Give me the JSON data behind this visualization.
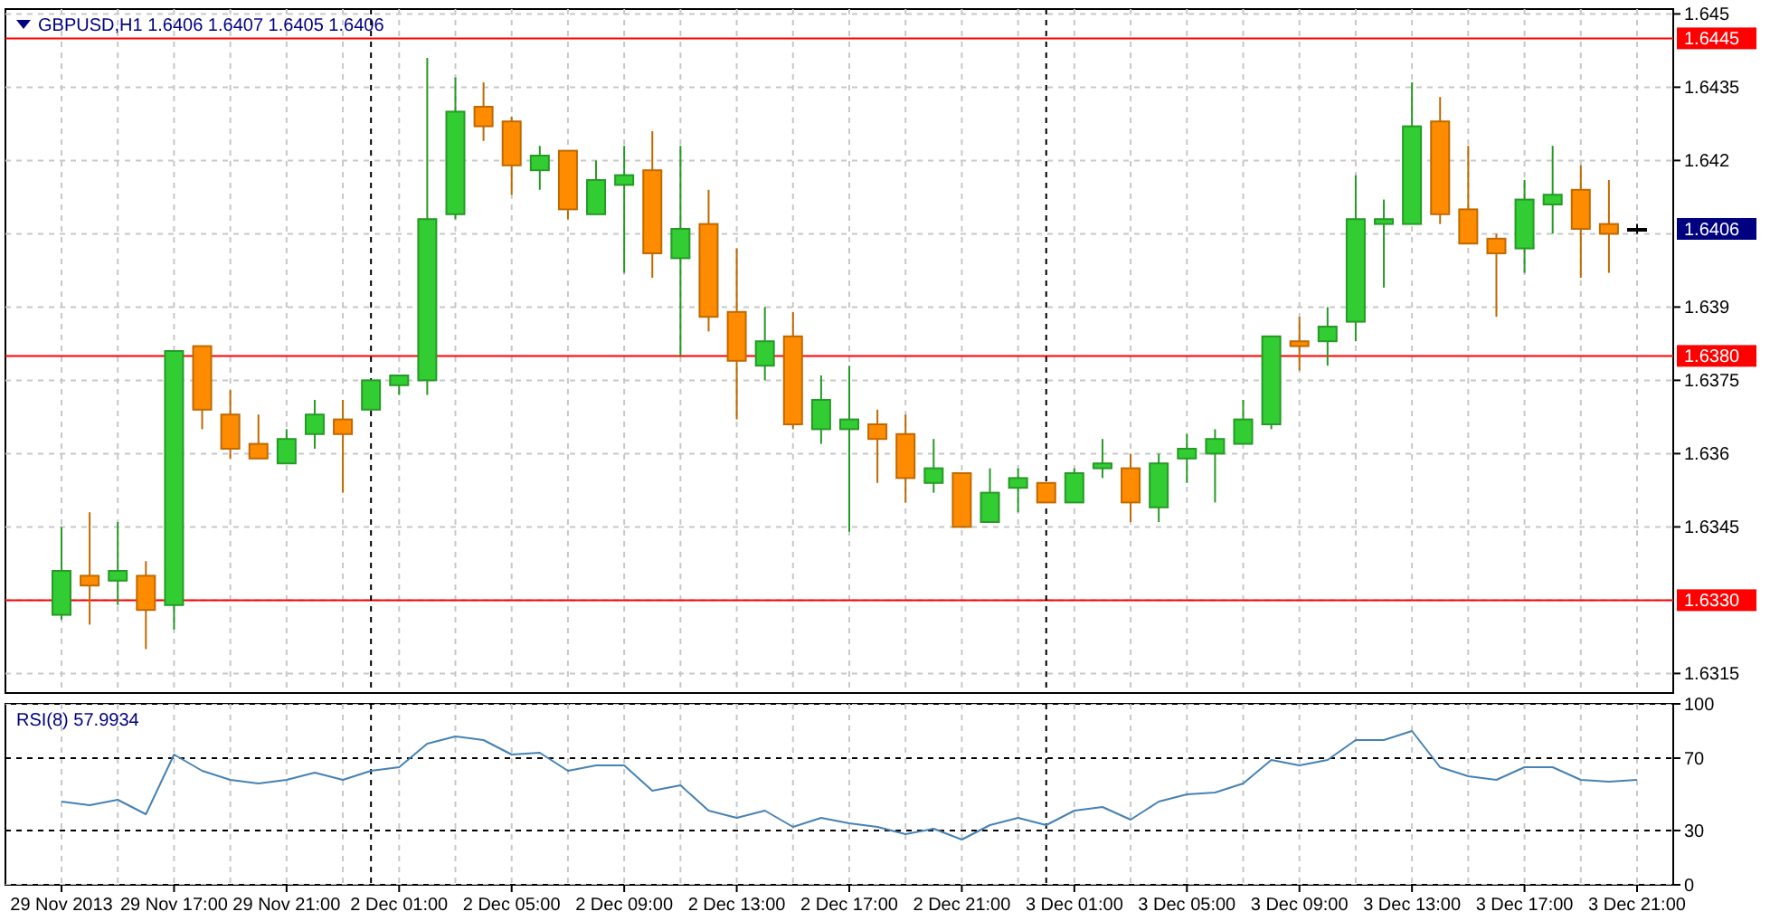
{
  "chart_data": [
    {
      "type": "candlestick",
      "title": "GBPUSD,H1  1.6406 1.6407 1.6405 1.6406",
      "categories": [
        null,
        null,
        null,
        null,
        null,
        null,
        null,
        null,
        null,
        null,
        null,
        null,
        null,
        null,
        null,
        null,
        null,
        null,
        null,
        null,
        null,
        null,
        null,
        null,
        null,
        null,
        null,
        null,
        null,
        null,
        null,
        null,
        null,
        null,
        null,
        null,
        null,
        null,
        null,
        null,
        null,
        null,
        null,
        null,
        null,
        null,
        null,
        null,
        null,
        null,
        null,
        null,
        null,
        null,
        null,
        null,
        null
      ],
      "ohlc": [
        [
          1.6327,
          1.6345,
          1.6326,
          1.6336
        ],
        [
          1.6335,
          1.6348,
          1.6325,
          1.6333
        ],
        [
          1.6334,
          1.6346,
          1.6329,
          1.6336
        ],
        [
          1.6335,
          1.6338,
          1.632,
          1.6328
        ],
        [
          1.6329,
          1.6381,
          1.6324,
          1.6381
        ],
        [
          1.6382,
          1.6382,
          1.6365,
          1.6369
        ],
        [
          1.6368,
          1.6373,
          1.6359,
          1.6361
        ],
        [
          1.6362,
          1.6368,
          1.6359,
          1.6359
        ],
        [
          1.6358,
          1.6365,
          1.6358,
          1.6363
        ],
        [
          1.6364,
          1.6371,
          1.6361,
          1.6368
        ],
        [
          1.6367,
          1.6371,
          1.6352,
          1.6364
        ],
        [
          1.6369,
          1.6375,
          1.6369,
          1.6375
        ],
        [
          1.6374,
          1.6376,
          1.6372,
          1.6376
        ],
        [
          1.6375,
          1.6441,
          1.6372,
          1.6408
        ],
        [
          1.6409,
          1.6437,
          1.6408,
          1.643
        ],
        [
          1.6431,
          1.6436,
          1.6424,
          1.6427
        ],
        [
          1.6428,
          1.6429,
          1.6413,
          1.6419
        ],
        [
          1.6418,
          1.6423,
          1.6414,
          1.6421
        ],
        [
          1.6422,
          1.6422,
          1.6408,
          1.641
        ],
        [
          1.6409,
          1.642,
          1.6409,
          1.6416
        ],
        [
          1.6415,
          1.6423,
          1.6397,
          1.6417
        ],
        [
          1.6418,
          1.6426,
          1.6396,
          1.6401
        ],
        [
          1.64,
          1.6423,
          1.638,
          1.6406
        ],
        [
          1.6407,
          1.6414,
          1.6385,
          1.6388
        ],
        [
          1.6389,
          1.6402,
          1.6367,
          1.6379
        ],
        [
          1.6378,
          1.639,
          1.6375,
          1.6383
        ],
        [
          1.6384,
          1.6389,
          1.6365,
          1.6366
        ],
        [
          1.6365,
          1.6376,
          1.6362,
          1.6371
        ],
        [
          1.6365,
          1.6378,
          1.6344,
          1.6367
        ],
        [
          1.6366,
          1.6369,
          1.6354,
          1.6363
        ],
        [
          1.6364,
          1.6368,
          1.635,
          1.6355
        ],
        [
          1.6354,
          1.6363,
          1.6352,
          1.6357
        ],
        [
          1.6356,
          1.6356,
          1.6345,
          1.6345
        ],
        [
          1.6346,
          1.6357,
          1.6346,
          1.6352
        ],
        [
          1.6353,
          1.6357,
          1.6348,
          1.6355
        ],
        [
          1.6354,
          1.6354,
          1.635,
          1.635
        ],
        [
          1.635,
          1.6357,
          1.635,
          1.6356
        ],
        [
          1.6357,
          1.6363,
          1.6355,
          1.6358
        ],
        [
          1.6357,
          1.636,
          1.6346,
          1.635
        ],
        [
          1.6349,
          1.636,
          1.6346,
          1.6358
        ],
        [
          1.6359,
          1.6364,
          1.6354,
          1.6361
        ],
        [
          1.636,
          1.6365,
          1.635,
          1.6363
        ],
        [
          1.6362,
          1.6371,
          1.6362,
          1.6367
        ],
        [
          1.6366,
          1.6384,
          1.6365,
          1.6384
        ],
        [
          1.6383,
          1.6388,
          1.6377,
          1.6382
        ],
        [
          1.6383,
          1.639,
          1.6378,
          1.6386
        ],
        [
          1.6387,
          1.6417,
          1.6383,
          1.6408
        ],
        [
          1.6407,
          1.6412,
          1.6394,
          1.6408
        ],
        [
          1.6407,
          1.6436,
          1.6407,
          1.6427
        ],
        [
          1.6428,
          1.6433,
          1.6407,
          1.6409
        ],
        [
          1.641,
          1.6423,
          1.6403,
          1.6403
        ],
        [
          1.6404,
          1.6405,
          1.6388,
          1.6401
        ],
        [
          1.6402,
          1.6416,
          1.6397,
          1.6412
        ],
        [
          1.6411,
          1.6423,
          1.6405,
          1.6413
        ],
        [
          1.6414,
          1.6419,
          1.6396,
          1.6406
        ],
        [
          1.6407,
          1.6416,
          1.6397,
          1.6405
        ],
        [
          1.6406,
          1.6407,
          1.6405,
          1.6406
        ]
      ],
      "colors": [
        "#32cd32",
        "#ff8c00",
        "#32cd32",
        "#ff8c00",
        "#32cd32",
        "#ff8c00",
        "#ff8c00",
        "#ff8c00",
        "#32cd32",
        "#32cd32",
        "#ff8c00",
        "#32cd32",
        "#32cd32",
        "#32cd32",
        "#32cd32",
        "#ff8c00",
        "#ff8c00",
        "#32cd32",
        "#ff8c00",
        "#32cd32",
        "#32cd32",
        "#ff8c00",
        "#32cd32",
        "#ff8c00",
        "#ff8c00",
        "#32cd32",
        "#ff8c00",
        "#32cd32",
        "#32cd32",
        "#ff8c00",
        "#ff8c00",
        "#32cd32",
        "#ff8c00",
        "#32cd32",
        "#32cd32",
        "#ff8c00",
        "#32cd32",
        "#32cd32",
        "#ff8c00",
        "#32cd32",
        "#32cd32",
        "#32cd32",
        "#32cd32",
        "#32cd32",
        "#ff8c00",
        "#32cd32",
        "#32cd32",
        "#32cd32",
        "#32cd32",
        "#ff8c00",
        "#ff8c00",
        "#ff8c00",
        "#32cd32",
        "#32cd32",
        "#ff8c00",
        "#ff8c00",
        "#000000"
      ],
      "ylim": [
        1.6311,
        1.6451
      ],
      "yticks": [
        1.645,
        1.6435,
        1.642,
        {
          "value": 1.6405,
          "label": null
        },
        1.639,
        1.6375,
        1.636,
        1.6345,
        {
          "value": 1.633,
          "label": null
        },
        1.6315
      ],
      "grid": true,
      "ref_lines": [
        {
          "axis": "y",
          "value": 1.6445,
          "label": "1.6445",
          "color": "#ff0000"
        },
        {
          "axis": "y",
          "value": 1.638,
          "label": "1.6380",
          "color": "#ff0000"
        },
        {
          "axis": "y",
          "value": 1.633,
          "label": "1.6330",
          "color": "#ff0000"
        }
      ],
      "annotations": [
        "1.6406"
      ]
    },
    {
      "type": "line",
      "title": "RSI(8) 57.9934",
      "categories": [
        "29 Nov 2013",
        null,
        null,
        null,
        "29 Nov 17:00",
        null,
        null,
        null,
        "29 Nov 21:00",
        null,
        null,
        null,
        "2 Dec 01:00",
        null,
        null,
        null,
        "2 Dec 05:00",
        null,
        null,
        null,
        "2 Dec 09:00",
        null,
        null,
        null,
        "2 Dec 13:00",
        null,
        null,
        null,
        "2 Dec 17:00",
        null,
        null,
        null,
        "2 Dec 21:00",
        null,
        null,
        null,
        "3 Dec 01:00",
        null,
        null,
        null,
        "3 Dec 05:00",
        null,
        null,
        null,
        "3 Dec 09:00",
        null,
        null,
        null,
        "3 Dec 13:00",
        null,
        null,
        null,
        "3 Dec 17:00",
        null,
        null,
        null,
        "3 Dec 21:00"
      ],
      "values": [
        46,
        44,
        47,
        39,
        72,
        63,
        58,
        56,
        58,
        62,
        58,
        63,
        65,
        78,
        82,
        80,
        72,
        73,
        63,
        66,
        66,
        52,
        55,
        41,
        37,
        41,
        32,
        37,
        34,
        32,
        28,
        31,
        25,
        33,
        37,
        33,
        41,
        43,
        36,
        46,
        50,
        51,
        56,
        69,
        66,
        69,
        80,
        80,
        85,
        65,
        60,
        58,
        65,
        65,
        58,
        57,
        58
      ],
      "color": "#4682b4",
      "ylim": [
        0,
        100
      ],
      "yticks": [
        0,
        30,
        70,
        100
      ],
      "grid": true,
      "ref_lines": [
        {
          "axis": "y",
          "value": 70,
          "color": "#000000",
          "line_style": "dashed"
        },
        {
          "axis": "y",
          "value": 30,
          "color": "#000000",
          "line_style": "dashed"
        }
      ]
    }
  ]
}
